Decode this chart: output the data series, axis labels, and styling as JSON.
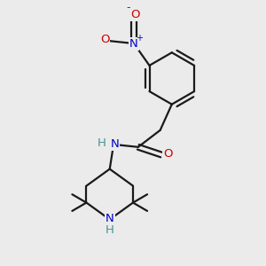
{
  "bg_color": "#ebebeb",
  "bond_color": "#1a1a1a",
  "bond_width": 1.6,
  "atom_colors": {
    "N": "#0000cc",
    "O": "#cc0000",
    "H": "#4a9090",
    "C": "#1a1a1a"
  },
  "figsize": [
    3.0,
    3.0
  ],
  "dpi": 100,
  "xlim": [
    0,
    10
  ],
  "ylim": [
    0,
    10
  ]
}
